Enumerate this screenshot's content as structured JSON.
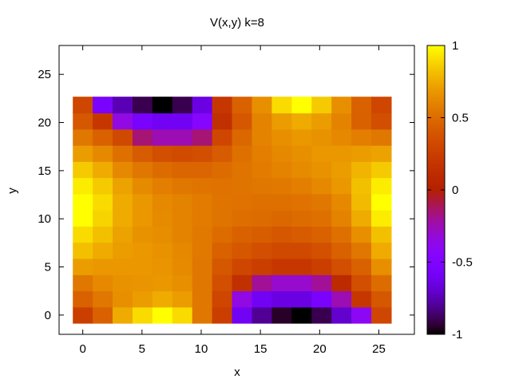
{
  "chart_data": {
    "type": "heatmap",
    "title": "V(x,y) k=8",
    "xlabel": "x",
    "ylabel": "y",
    "xlim": [
      -2,
      28
    ],
    "ylim": [
      -2,
      28
    ],
    "xticks": [
      0,
      5,
      10,
      15,
      20,
      25
    ],
    "yticks": [
      0,
      5,
      10,
      15,
      20,
      25
    ],
    "x_start": 0,
    "x_step": 1.68,
    "y_start": 0,
    "y_step": 1.68,
    "colorbar": {
      "min": -1,
      "max": 1,
      "ticks": [
        "-1",
        "-0.5",
        "0",
        "0.5",
        "1"
      ],
      "tick_values": [
        -1,
        -0.5,
        0,
        0.5,
        1
      ]
    },
    "grid_rows_bottom_to_top": [
      [
        0.25,
        0.45,
        0.75,
        0.9,
        1.0,
        0.9,
        0.55,
        0.25,
        -0.6,
        -0.8,
        -0.95,
        -1.0,
        -0.9,
        -0.7,
        -0.4,
        0.3
      ],
      [
        0.45,
        0.55,
        0.65,
        0.7,
        0.75,
        0.7,
        0.55,
        0.3,
        -0.35,
        -0.6,
        -0.65,
        -0.65,
        -0.55,
        -0.25,
        0.2,
        0.4
      ],
      [
        0.55,
        0.62,
        0.66,
        0.67,
        0.68,
        0.65,
        0.55,
        0.35,
        0.15,
        -0.2,
        -0.3,
        -0.3,
        -0.2,
        0.1,
        0.35,
        0.5
      ],
      [
        0.7,
        0.68,
        0.68,
        0.68,
        0.67,
        0.63,
        0.55,
        0.4,
        0.3,
        0.25,
        0.2,
        0.2,
        0.25,
        0.35,
        0.45,
        0.65
      ],
      [
        0.82,
        0.75,
        0.7,
        0.68,
        0.66,
        0.62,
        0.56,
        0.45,
        0.4,
        0.35,
        0.32,
        0.32,
        0.36,
        0.45,
        0.55,
        0.75
      ],
      [
        0.9,
        0.82,
        0.72,
        0.66,
        0.64,
        0.6,
        0.56,
        0.5,
        0.45,
        0.43,
        0.4,
        0.42,
        0.45,
        0.52,
        0.65,
        0.82
      ],
      [
        1.0,
        0.88,
        0.75,
        0.68,
        0.63,
        0.6,
        0.57,
        0.54,
        0.51,
        0.5,
        0.48,
        0.5,
        0.52,
        0.6,
        0.75,
        0.95
      ],
      [
        1.0,
        0.9,
        0.75,
        0.68,
        0.62,
        0.6,
        0.57,
        0.54,
        0.53,
        0.52,
        0.52,
        0.53,
        0.55,
        0.62,
        0.8,
        1.0
      ],
      [
        0.95,
        0.85,
        0.72,
        0.63,
        0.58,
        0.55,
        0.54,
        0.53,
        0.54,
        0.55,
        0.56,
        0.58,
        0.62,
        0.68,
        0.82,
        0.95
      ],
      [
        0.85,
        0.75,
        0.62,
        0.55,
        0.5,
        0.47,
        0.47,
        0.5,
        0.54,
        0.57,
        0.6,
        0.63,
        0.66,
        0.7,
        0.78,
        0.85
      ],
      [
        0.7,
        0.62,
        0.52,
        0.42,
        0.35,
        0.33,
        0.35,
        0.42,
        0.52,
        0.58,
        0.62,
        0.65,
        0.68,
        0.68,
        0.7,
        0.72
      ],
      [
        0.55,
        0.45,
        0.32,
        -0.15,
        -0.25,
        -0.25,
        -0.15,
        0.3,
        0.48,
        0.6,
        0.65,
        0.68,
        0.66,
        0.62,
        0.58,
        0.55
      ],
      [
        0.4,
        0.2,
        -0.35,
        -0.55,
        -0.6,
        -0.6,
        -0.45,
        0.15,
        0.4,
        0.6,
        0.7,
        0.75,
        0.7,
        0.6,
        0.45,
        0.35
      ],
      [
        0.3,
        -0.55,
        -0.75,
        -0.9,
        -1.0,
        -0.9,
        -0.65,
        0.2,
        0.45,
        0.65,
        0.9,
        1.0,
        0.85,
        0.65,
        0.45,
        0.3
      ]
    ]
  }
}
